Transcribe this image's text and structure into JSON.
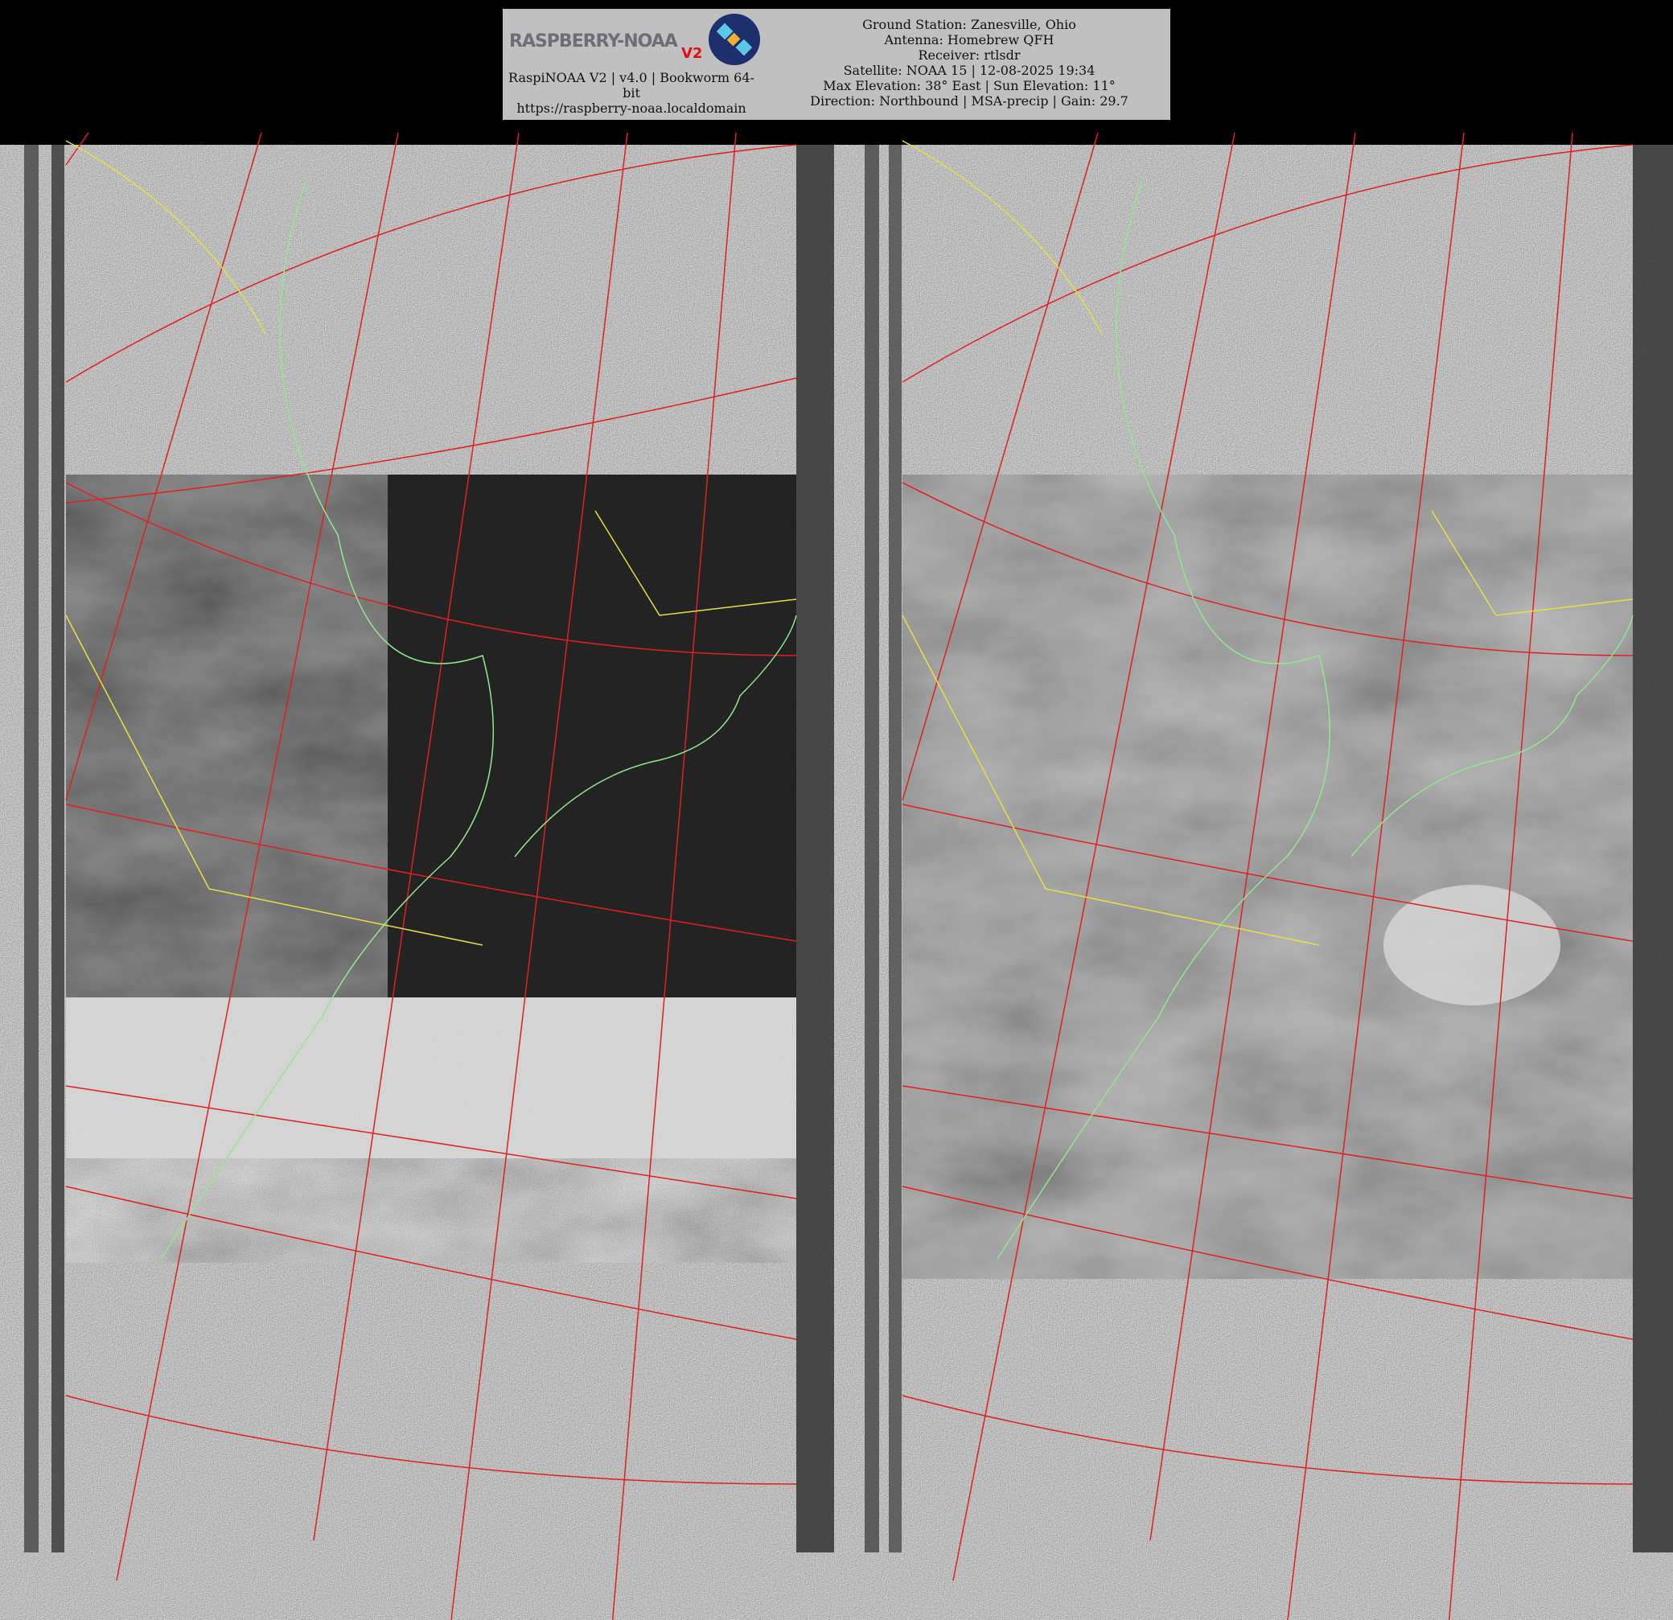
{
  "header": {
    "logo": {
      "text": "RASPBERRY-NOAA",
      "badge": "V2"
    },
    "left_lines": [
      "RaspiNOAA V2 | v4.0 | Bookworm 64-bit",
      "https://raspberry-noaa.localdomain"
    ],
    "right_lines": [
      "Ground Station: Zanesville, Ohio",
      "Antenna: Homebrew QFH",
      "Receiver: rtlsdr",
      "Satellite: NOAA 15 | 12-08-2025 19:34",
      "Max Elevation: 38° East | Sun Elevation: 11°",
      "Direction: Northbound | MSA-precip | Gain: 29.7"
    ]
  },
  "imagery": {
    "panels": [
      "channel-a",
      "channel-b"
    ],
    "colors": {
      "graticule": "#e02020",
      "coastline": "#90e890",
      "borders": "#e8e040",
      "header_bg": "#c0c0c0"
    }
  }
}
